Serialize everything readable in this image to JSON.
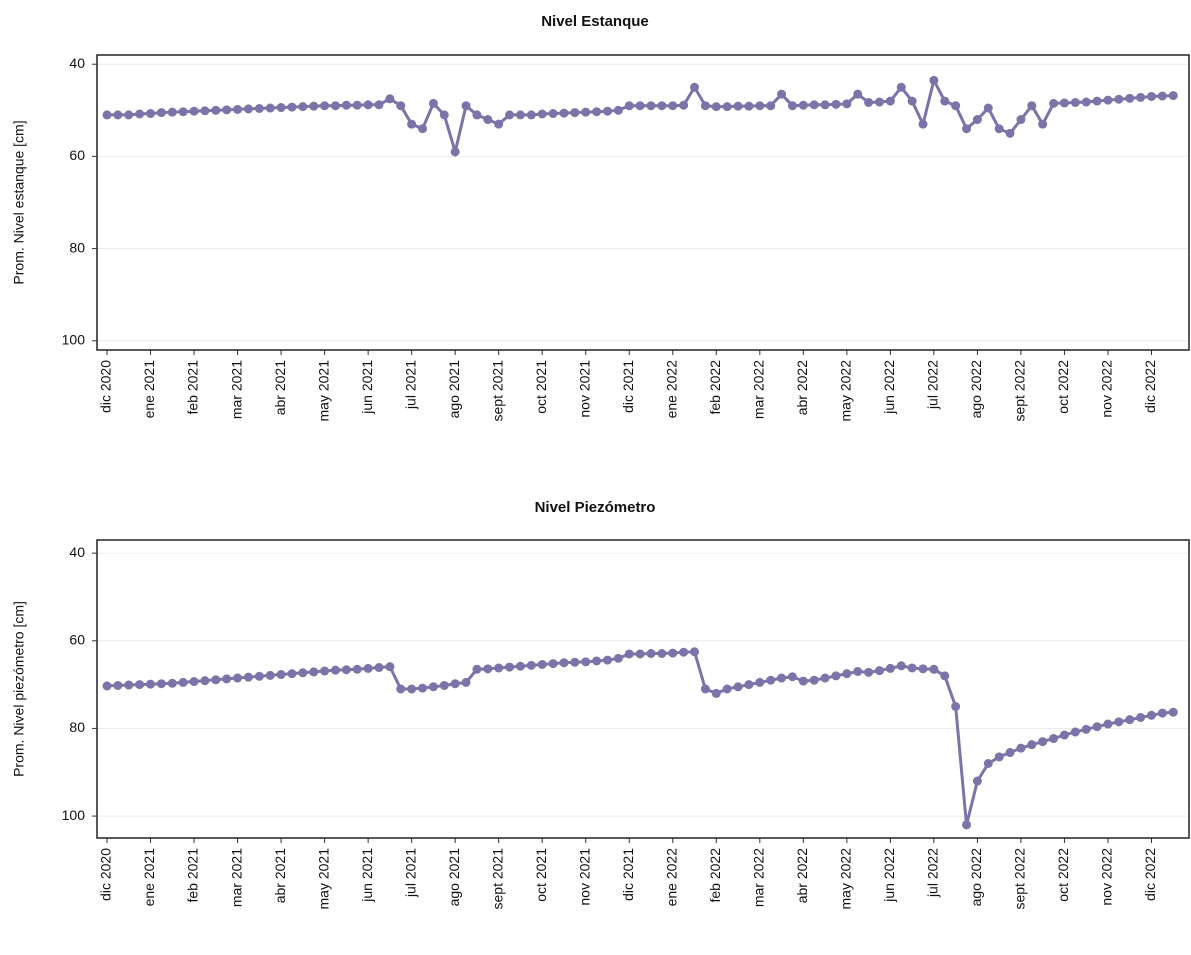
{
  "chart_data": [
    {
      "type": "line",
      "title": "Nivel Estanque",
      "y_label": "Prom. Nivel estanque [cm]",
      "categories": [
        "dic 2020",
        null,
        null,
        null,
        "ene 2021",
        null,
        null,
        null,
        "feb 2021",
        null,
        null,
        null,
        "mar 2021",
        null,
        null,
        null,
        "abr 2021",
        null,
        null,
        null,
        "may 2021",
        null,
        null,
        null,
        "jun 2021",
        null,
        null,
        null,
        "jul 2021",
        null,
        null,
        null,
        "ago 2021",
        null,
        null,
        null,
        "sept 2021",
        null,
        null,
        null,
        "oct 2021",
        null,
        null,
        null,
        "nov 2021",
        null,
        null,
        null,
        "dic 2021",
        null,
        null,
        null,
        "ene 2022",
        null,
        null,
        null,
        "feb 2022",
        null,
        null,
        null,
        "mar 2022",
        null,
        null,
        null,
        "abr 2022",
        null,
        null,
        null,
        "may 2022",
        null,
        null,
        null,
        "jun 2022",
        null,
        null,
        null,
        "jul 2022",
        null,
        null,
        null,
        "ago 2022",
        null,
        null,
        null,
        "sept 2022",
        null,
        null,
        null,
        "oct 2022",
        null,
        null,
        null,
        "nov 2022",
        null,
        null,
        null,
        "dic 2022",
        null,
        null
      ],
      "series": [
        {
          "color": "#7b74a9",
          "values": [
            51,
            51,
            51,
            50.8,
            50.7,
            50.5,
            50.4,
            50.3,
            50.2,
            50.1,
            50,
            49.9,
            49.8,
            49.7,
            49.6,
            49.5,
            49.4,
            49.3,
            49.2,
            49.1,
            49,
            49,
            48.9,
            48.9,
            48.8,
            48.8,
            47.5,
            49,
            53,
            54,
            48.5,
            51,
            59,
            49,
            51,
            52,
            53,
            51,
            51,
            51,
            50.8,
            50.7,
            50.6,
            50.5,
            50.4,
            50.3,
            50.2,
            50,
            49,
            49,
            49,
            49,
            49,
            48.9,
            45,
            49,
            49.2,
            49.2,
            49.1,
            49.1,
            49,
            49,
            46.5,
            49,
            48.9,
            48.8,
            48.8,
            48.7,
            48.6,
            46.5,
            48.3,
            48.2,
            48,
            45,
            48,
            53,
            43.5,
            48,
            49,
            54,
            52,
            49.5,
            54,
            55,
            52,
            49,
            53,
            48.5,
            48.4,
            48.3,
            48.2,
            48,
            47.8,
            47.6,
            47.4,
            47.2,
            47,
            46.9,
            46.8
          ]
        }
      ],
      "ylim": [
        102,
        38
      ],
      "yticks": [
        40,
        60,
        80,
        100
      ],
      "grid": true
    },
    {
      "type": "line",
      "title": "Nivel Piezómetro",
      "y_label": "Prom. Nivel piezómetro [cm]",
      "categories": [
        "dic 2020",
        null,
        null,
        null,
        "ene 2021",
        null,
        null,
        null,
        "feb 2021",
        null,
        null,
        null,
        "mar 2021",
        null,
        null,
        null,
        "abr 2021",
        null,
        null,
        null,
        "may 2021",
        null,
        null,
        null,
        "jun 2021",
        null,
        null,
        null,
        "jul 2021",
        null,
        null,
        null,
        "ago 2021",
        null,
        null,
        null,
        "sept 2021",
        null,
        null,
        null,
        "oct 2021",
        null,
        null,
        null,
        "nov 2021",
        null,
        null,
        null,
        "dic 2021",
        null,
        null,
        null,
        "ene 2022",
        null,
        null,
        null,
        "feb 2022",
        null,
        null,
        null,
        "mar 2022",
        null,
        null,
        null,
        "abr 2022",
        null,
        null,
        null,
        "may 2022",
        null,
        null,
        null,
        "jun 2022",
        null,
        null,
        null,
        "jul 2022",
        null,
        null,
        null,
        "ago 2022",
        null,
        null,
        null,
        "sept 2022",
        null,
        null,
        null,
        "oct 2022",
        null,
        null,
        null,
        "nov 2022",
        null,
        null,
        null,
        "dic 2022",
        null,
        null
      ],
      "series": [
        {
          "color": "#7b74a9",
          "values": [
            70.3,
            70.2,
            70.1,
            70,
            69.9,
            69.8,
            69.7,
            69.5,
            69.3,
            69.1,
            68.9,
            68.7,
            68.5,
            68.3,
            68.1,
            67.9,
            67.7,
            67.5,
            67.3,
            67.1,
            66.9,
            66.7,
            66.6,
            66.5,
            66.3,
            66.1,
            65.9,
            71,
            71,
            70.8,
            70.5,
            70.2,
            69.8,
            69.5,
            66.5,
            66.4,
            66.2,
            66,
            65.8,
            65.6,
            65.4,
            65.2,
            65,
            64.9,
            64.8,
            64.6,
            64.4,
            64,
            63,
            63,
            62.9,
            62.9,
            62.8,
            62.6,
            62.5,
            71,
            72,
            71,
            70.5,
            70,
            69.5,
            69,
            68.5,
            68.2,
            69.2,
            69,
            68.5,
            68,
            67.5,
            67,
            67.2,
            66.8,
            66.3,
            65.7,
            66.2,
            66.4,
            66.5,
            68,
            75,
            102,
            92,
            88,
            86.5,
            85.5,
            84.5,
            83.7,
            83,
            82.3,
            81.5,
            80.8,
            80.2,
            79.6,
            79,
            78.5,
            78,
            77.5,
            77,
            76.5,
            76.3
          ]
        }
      ],
      "ylim": [
        105,
        37
      ],
      "yticks": [
        40,
        60,
        80,
        100
      ],
      "grid": true
    }
  ]
}
